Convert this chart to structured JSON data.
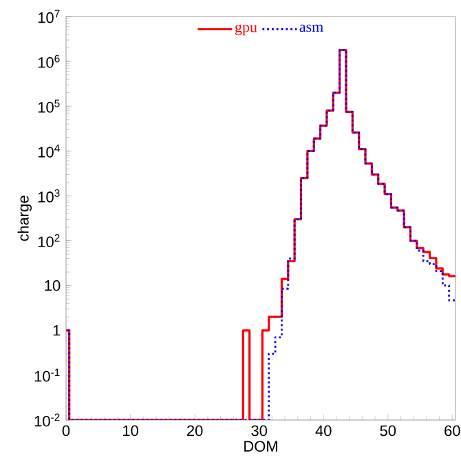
{
  "chart_data": {
    "type": "step",
    "xlabel": "DOM",
    "ylabel": "charge",
    "log": "y",
    "legend": "top",
    "x": [
      0,
      1,
      2,
      3,
      4,
      5,
      6,
      7,
      8,
      9,
      10,
      11,
      12,
      13,
      14,
      15,
      16,
      17,
      18,
      19,
      20,
      21,
      22,
      23,
      24,
      25,
      26,
      27,
      28,
      29,
      30,
      31,
      32,
      33,
      34,
      35,
      36,
      37,
      38,
      39,
      40,
      41,
      42,
      43,
      44,
      45,
      46,
      47,
      48,
      49,
      50,
      51,
      52,
      53,
      54,
      55,
      56,
      57,
      58,
      59,
      60
    ],
    "series": [
      {
        "name": "gpu",
        "color": "#ff0000",
        "line_style": "solid",
        "values": [
          1,
          0.01,
          0.01,
          0.01,
          0.01,
          0.01,
          0.01,
          0.01,
          0.01,
          0.01,
          0.01,
          0.01,
          0.01,
          0.01,
          0.01,
          0.01,
          0.01,
          0.01,
          0.01,
          0.01,
          0.01,
          0.01,
          0.01,
          0.01,
          0.01,
          0.01,
          0.01,
          0.01,
          1,
          0.01,
          0.01,
          1,
          2,
          2,
          14,
          35,
          300,
          2500,
          10000,
          19000,
          37000,
          80000,
          200000,
          1800000,
          75000,
          26000,
          11000,
          5300,
          3000,
          1850,
          1100,
          550,
          470,
          200,
          100,
          68,
          56,
          41,
          24,
          17.6,
          16.3
        ]
      },
      {
        "name": "asm",
        "color": "#0000ff",
        "line_style": "dotted",
        "values": [
          1,
          0.01,
          0.01,
          0.01,
          0.01,
          0.01,
          0.01,
          0.01,
          0.01,
          0.01,
          0.01,
          0.01,
          0.01,
          0.01,
          0.01,
          0.01,
          0.01,
          0.01,
          0.01,
          0.01,
          0.01,
          0.01,
          0.01,
          0.01,
          0.01,
          0.01,
          0.01,
          0.01,
          0.01,
          0.01,
          0.01,
          0.01,
          0.3,
          0.7,
          8.5,
          40,
          300,
          2500,
          10000,
          19000,
          37000,
          80000,
          200000,
          1800000,
          75000,
          26000,
          11000,
          5300,
          3000,
          1850,
          1100,
          550,
          470,
          200,
          100,
          60,
          35,
          30,
          21,
          10,
          4.7
        ]
      }
    ],
    "xlim": [
      0,
      60.5
    ],
    "xticks": [
      0,
      10,
      20,
      30,
      40,
      50,
      60
    ],
    "ylim": [
      0.01,
      10000000
    ],
    "yticks": [
      {
        "value": 0.01,
        "label": "10$^{-2}$"
      },
      {
        "value": 0.1,
        "label": "10$^{-1}$"
      },
      1,
      10,
      {
        "value": 100,
        "label": "10$^{2}$"
      },
      {
        "value": 1000,
        "label": "10$^{3}$"
      },
      {
        "value": 10000,
        "label": "10$^{4}$"
      },
      {
        "value": 100000,
        "label": "10$^{5}$"
      },
      {
        "value": 1000000,
        "label": "10$^{6}$"
      },
      {
        "value": 10000000,
        "label": "10$^{7}$"
      }
    ]
  }
}
